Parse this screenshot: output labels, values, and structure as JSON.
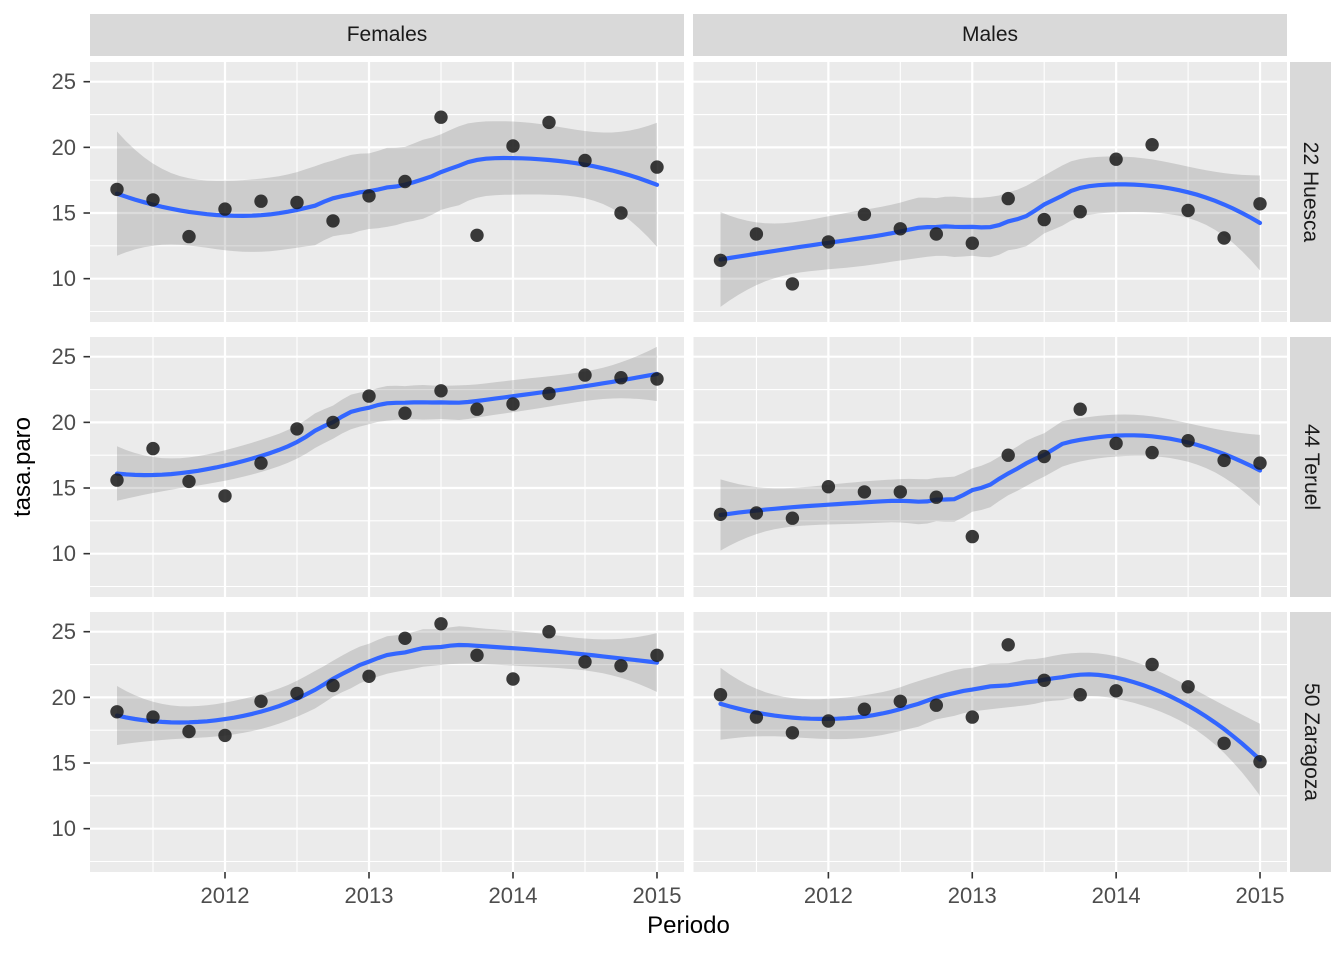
{
  "chart_data": {
    "type": "scatter",
    "title": "",
    "xlabel": "Periodo",
    "ylabel": "tasa.paro",
    "legend": "none",
    "grid": "on",
    "facets": {
      "columns": [
        "Females",
        "Males"
      ],
      "rows": [
        "22 Huesca",
        "44 Teruel",
        "50 Zaragoza"
      ]
    },
    "x_domain": [
      2011.0625,
      2015.1875
    ],
    "y_domain": [
      6.7,
      26.5
    ],
    "x_ticks": [
      2012,
      2013,
      2014,
      2015
    ],
    "x_minor_ticks": [
      2011.5,
      2012.5,
      2013.5,
      2014.5
    ],
    "y_ticks": [
      10,
      15,
      20,
      25
    ],
    "y_minor_ticks": [
      7.5,
      12.5,
      17.5,
      22.5
    ],
    "x": [
      2011.25,
      2011.5,
      2011.75,
      2012.0,
      2012.25,
      2012.5,
      2012.75,
      2013.0,
      2013.25,
      2013.5,
      2013.75,
      2014.0,
      2014.25,
      2014.5,
      2014.75,
      2015.0
    ],
    "panels": [
      {
        "row": "22 Huesca",
        "col": "Females",
        "values": [
          16.8,
          16.0,
          13.2,
          15.3,
          15.9,
          15.8,
          14.4,
          16.3,
          17.4,
          22.3,
          13.3,
          20.1,
          21.9,
          19.0,
          15.0,
          18.5
        ]
      },
      {
        "row": "22 Huesca",
        "col": "Males",
        "values": [
          11.4,
          13.4,
          9.6,
          12.8,
          14.9,
          13.8,
          13.4,
          12.7,
          16.1,
          14.5,
          15.1,
          19.1,
          20.2,
          15.2,
          13.1,
          15.7
        ]
      },
      {
        "row": "44 Teruel",
        "col": "Females",
        "values": [
          15.6,
          18.0,
          15.5,
          14.4,
          16.9,
          19.5,
          20.0,
          22.0,
          20.7,
          22.4,
          21.0,
          21.4,
          22.2,
          23.6,
          23.4,
          23.3
        ]
      },
      {
        "row": "44 Teruel",
        "col": "Males",
        "values": [
          13.0,
          13.1,
          12.7,
          15.1,
          14.7,
          14.7,
          14.3,
          11.3,
          17.5,
          17.4,
          21.0,
          18.4,
          17.7,
          18.6,
          17.1,
          16.9
        ]
      },
      {
        "row": "50 Zaragoza",
        "col": "Females",
        "values": [
          18.9,
          18.5,
          17.4,
          17.1,
          19.7,
          20.3,
          20.9,
          21.6,
          24.5,
          25.6,
          23.2,
          21.4,
          25.0,
          22.7,
          22.4,
          23.2
        ]
      },
      {
        "row": "50 Zaragoza",
        "col": "Males",
        "values": [
          20.2,
          18.5,
          17.3,
          18.2,
          19.1,
          19.7,
          19.4,
          18.5,
          24.0,
          21.3,
          20.2,
          20.5,
          22.5,
          20.8,
          16.5,
          15.1
        ]
      }
    ],
    "smooth": {
      "method": "loess",
      "span": 0.75,
      "ci_level": 0.95
    },
    "colors": {
      "panel_bg": "#EBEBEB",
      "strip_bg": "#D9D9D9",
      "grid_line": "#FFFFFF",
      "smooth_line": "#3366FF",
      "ribbon_fill": "#606060",
      "ribbon_opacity": "0.22",
      "point": "#1A1A1A",
      "axis_text": "#4D4D4D",
      "tick_mark": "#333333"
    }
  }
}
